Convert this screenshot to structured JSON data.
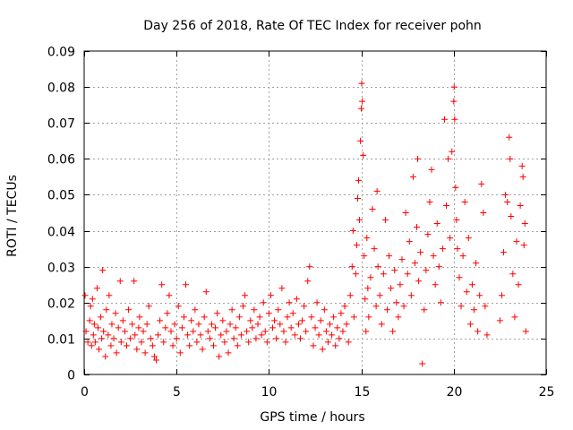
{
  "chart_data": {
    "type": "scatter",
    "title": "Day 256 of 2018, Rate Of TEC Index for receiver pohn",
    "xlabel": "GPS time / hours",
    "ylabel": "ROTI / TECUs",
    "xlim": [
      0,
      25
    ],
    "ylim": [
      0,
      0.09
    ],
    "x_ticks": [
      0,
      5,
      10,
      15,
      20,
      25
    ],
    "y_ticks": [
      0,
      0.01,
      0.02,
      0.03,
      0.04,
      0.05,
      0.06,
      0.07,
      0.08,
      0.09
    ],
    "x_tick_labels": [
      "0",
      "5",
      "10",
      "15",
      "20",
      "25"
    ],
    "y_tick_labels": [
      "0",
      "0.01",
      "0.02",
      "0.03",
      "0.04",
      "0.05",
      "0.06",
      "0.07",
      "0.08",
      "0.09"
    ],
    "grid": true,
    "marker": "+",
    "series_color": "#ff0000",
    "series": [
      {
        "name": "ROTI",
        "points": [
          [
            0.05,
            0.022
          ],
          [
            0.1,
            0.012
          ],
          [
            0.2,
            0.009
          ],
          [
            0.3,
            0.015
          ],
          [
            0.35,
            0.019
          ],
          [
            0.4,
            0.008
          ],
          [
            0.45,
            0.021
          ],
          [
            0.5,
            0.011
          ],
          [
            0.55,
            0.014
          ],
          [
            0.6,
            0.009
          ],
          [
            0.7,
            0.024
          ],
          [
            0.75,
            0.013
          ],
          [
            0.8,
            0.007
          ],
          [
            0.9,
            0.016
          ],
          [
            0.95,
            0.01
          ],
          [
            1.0,
            0.029
          ],
          [
            1.05,
            0.012
          ],
          [
            1.15,
            0.005
          ],
          [
            1.2,
            0.018
          ],
          [
            1.3,
            0.011
          ],
          [
            1.35,
            0.022
          ],
          [
            1.45,
            0.008
          ],
          [
            1.5,
            0.014
          ],
          [
            1.6,
            0.01
          ],
          [
            1.7,
            0.017
          ],
          [
            1.75,
            0.006
          ],
          [
            1.85,
            0.013
          ],
          [
            1.95,
            0.026
          ],
          [
            2.0,
            0.009
          ],
          [
            2.1,
            0.015
          ],
          [
            2.2,
            0.012
          ],
          [
            2.3,
            0.008
          ],
          [
            2.4,
            0.018
          ],
          [
            2.5,
            0.01
          ],
          [
            2.6,
            0.014
          ],
          [
            2.7,
            0.026
          ],
          [
            2.75,
            0.011
          ],
          [
            2.85,
            0.007
          ],
          [
            2.95,
            0.013
          ],
          [
            3.0,
            0.016
          ],
          [
            3.1,
            0.009
          ],
          [
            3.2,
            0.012
          ],
          [
            3.3,
            0.006
          ],
          [
            3.4,
            0.014
          ],
          [
            3.5,
            0.019
          ],
          [
            3.6,
            0.01
          ],
          [
            3.7,
            0.008
          ],
          [
            3.8,
            0.005
          ],
          [
            3.9,
            0.004
          ],
          [
            4.0,
            0.011
          ],
          [
            4.1,
            0.015
          ],
          [
            4.2,
            0.025
          ],
          [
            4.3,
            0.009
          ],
          [
            4.4,
            0.013
          ],
          [
            4.5,
            0.017
          ],
          [
            4.6,
            0.022
          ],
          [
            4.7,
            0.012
          ],
          [
            4.8,
            0.008
          ],
          [
            4.9,
            0.014
          ],
          [
            5.0,
            0.01
          ],
          [
            5.1,
            0.019
          ],
          [
            5.2,
            0.006
          ],
          [
            5.3,
            0.013
          ],
          [
            5.4,
            0.016
          ],
          [
            5.5,
            0.025
          ],
          [
            5.6,
            0.011
          ],
          [
            5.7,
            0.008
          ],
          [
            5.8,
            0.015
          ],
          [
            5.9,
            0.012
          ],
          [
            6.0,
            0.018
          ],
          [
            6.1,
            0.009
          ],
          [
            6.2,
            0.014
          ],
          [
            6.3,
            0.011
          ],
          [
            6.4,
            0.007
          ],
          [
            6.5,
            0.016
          ],
          [
            6.6,
            0.023
          ],
          [
            6.7,
            0.012
          ],
          [
            6.8,
            0.01
          ],
          [
            6.9,
            0.014
          ],
          [
            7.0,
            0.008
          ],
          [
            7.1,
            0.013
          ],
          [
            7.2,
            0.017
          ],
          [
            7.3,
            0.005
          ],
          [
            7.4,
            0.011
          ],
          [
            7.5,
            0.015
          ],
          [
            7.6,
            0.009
          ],
          [
            7.7,
            0.012
          ],
          [
            7.8,
            0.006
          ],
          [
            7.9,
            0.014
          ],
          [
            8.0,
            0.018
          ],
          [
            8.1,
            0.01
          ],
          [
            8.2,
            0.013
          ],
          [
            8.3,
            0.008
          ],
          [
            8.4,
            0.016
          ],
          [
            8.5,
            0.011
          ],
          [
            8.6,
            0.019
          ],
          [
            8.7,
            0.022
          ],
          [
            8.8,
            0.012
          ],
          [
            8.9,
            0.009
          ],
          [
            9.0,
            0.015
          ],
          [
            9.1,
            0.013
          ],
          [
            9.2,
            0.018
          ],
          [
            9.3,
            0.01
          ],
          [
            9.4,
            0.014
          ],
          [
            9.5,
            0.016
          ],
          [
            9.6,
            0.011
          ],
          [
            9.7,
            0.02
          ],
          [
            9.8,
            0.012
          ],
          [
            9.9,
            0.009
          ],
          [
            10.0,
            0.017
          ],
          [
            10.1,
            0.022
          ],
          [
            10.2,
            0.013
          ],
          [
            10.3,
            0.015
          ],
          [
            10.4,
            0.01
          ],
          [
            10.5,
            0.018
          ],
          [
            10.6,
            0.014
          ],
          [
            10.7,
            0.024
          ],
          [
            10.8,
            0.012
          ],
          [
            10.9,
            0.009
          ],
          [
            11.0,
            0.016
          ],
          [
            11.1,
            0.02
          ],
          [
            11.2,
            0.013
          ],
          [
            11.3,
            0.017
          ],
          [
            11.4,
            0.011
          ],
          [
            11.5,
            0.021
          ],
          [
            11.6,
            0.014
          ],
          [
            11.7,
            0.01
          ],
          [
            11.8,
            0.015
          ],
          [
            11.9,
            0.019
          ],
          [
            12.0,
            0.012
          ],
          [
            12.1,
            0.026
          ],
          [
            12.2,
            0.03
          ],
          [
            12.3,
            0.016
          ],
          [
            12.4,
            0.008
          ],
          [
            12.5,
            0.013
          ],
          [
            12.6,
            0.02
          ],
          [
            12.7,
            0.011
          ],
          [
            12.8,
            0.015
          ],
          [
            12.9,
            0.007
          ],
          [
            13.0,
            0.018
          ],
          [
            13.1,
            0.012
          ],
          [
            13.2,
            0.009
          ],
          [
            13.3,
            0.014
          ],
          [
            13.4,
            0.011
          ],
          [
            13.5,
            0.016
          ],
          [
            13.6,
            0.008
          ],
          [
            13.7,
            0.013
          ],
          [
            13.8,
            0.01
          ],
          [
            13.9,
            0.017
          ],
          [
            14.0,
            0.012
          ],
          [
            14.1,
            0.019
          ],
          [
            14.2,
            0.014
          ],
          [
            14.3,
            0.009
          ],
          [
            14.4,
            0.022
          ],
          [
            14.5,
            0.03
          ],
          [
            14.55,
            0.04
          ],
          [
            14.6,
            0.016
          ],
          [
            14.7,
            0.028
          ],
          [
            14.75,
            0.036
          ],
          [
            14.8,
            0.049
          ],
          [
            14.85,
            0.054
          ],
          [
            14.9,
            0.043
          ],
          [
            14.95,
            0.065
          ],
          [
            15.0,
            0.074
          ],
          [
            15.02,
            0.081
          ],
          [
            15.05,
            0.076
          ],
          [
            15.1,
            0.061
          ],
          [
            15.15,
            0.033
          ],
          [
            15.2,
            0.021
          ],
          [
            15.25,
            0.012
          ],
          [
            15.3,
            0.038
          ],
          [
            15.35,
            0.024
          ],
          [
            15.4,
            0.016
          ],
          [
            15.5,
            0.027
          ],
          [
            15.6,
            0.046
          ],
          [
            15.7,
            0.035
          ],
          [
            15.8,
            0.019
          ],
          [
            15.85,
            0.051
          ],
          [
            15.9,
            0.03
          ],
          [
            16.0,
            0.022
          ],
          [
            16.1,
            0.014
          ],
          [
            16.2,
            0.028
          ],
          [
            16.3,
            0.043
          ],
          [
            16.4,
            0.018
          ],
          [
            16.5,
            0.033
          ],
          [
            16.6,
            0.024
          ],
          [
            16.7,
            0.012
          ],
          [
            16.8,
            0.029
          ],
          [
            16.9,
            0.02
          ],
          [
            17.0,
            0.016
          ],
          [
            17.1,
            0.025
          ],
          [
            17.2,
            0.032
          ],
          [
            17.3,
            0.019
          ],
          [
            17.4,
            0.045
          ],
          [
            17.5,
            0.028
          ],
          [
            17.6,
            0.037
          ],
          [
            17.7,
            0.022
          ],
          [
            17.8,
            0.055
          ],
          [
            17.9,
            0.031
          ],
          [
            18.0,
            0.041
          ],
          [
            18.05,
            0.06
          ],
          [
            18.1,
            0.026
          ],
          [
            18.2,
            0.034
          ],
          [
            18.3,
            0.003
          ],
          [
            18.4,
            0.018
          ],
          [
            18.5,
            0.029
          ],
          [
            18.6,
            0.039
          ],
          [
            18.7,
            0.048
          ],
          [
            18.8,
            0.057
          ],
          [
            18.9,
            0.033
          ],
          [
            19.0,
            0.025
          ],
          [
            19.1,
            0.042
          ],
          [
            19.2,
            0.03
          ],
          [
            19.3,
            0.02
          ],
          [
            19.4,
            0.035
          ],
          [
            19.5,
            0.071
          ],
          [
            19.6,
            0.047
          ],
          [
            19.7,
            0.06
          ],
          [
            19.8,
            0.038
          ],
          [
            19.9,
            0.062
          ],
          [
            20.0,
            0.076
          ],
          [
            20.02,
            0.08
          ],
          [
            20.05,
            0.071
          ],
          [
            20.1,
            0.052
          ],
          [
            20.15,
            0.043
          ],
          [
            20.2,
            0.035
          ],
          [
            20.3,
            0.027
          ],
          [
            20.4,
            0.019
          ],
          [
            20.5,
            0.033
          ],
          [
            20.6,
            0.048
          ],
          [
            20.7,
            0.023
          ],
          [
            20.8,
            0.038
          ],
          [
            20.9,
            0.014
          ],
          [
            21.0,
            0.025
          ],
          [
            21.1,
            0.018
          ],
          [
            21.2,
            0.031
          ],
          [
            21.3,
            0.012
          ],
          [
            21.4,
            0.022
          ],
          [
            21.5,
            0.053
          ],
          [
            21.6,
            0.045
          ],
          [
            21.7,
            0.019
          ],
          [
            21.8,
            0.011
          ],
          [
            22.5,
            0.015
          ],
          [
            22.6,
            0.022
          ],
          [
            22.7,
            0.034
          ],
          [
            22.8,
            0.05
          ],
          [
            22.9,
            0.048
          ],
          [
            23.0,
            0.066
          ],
          [
            23.05,
            0.06
          ],
          [
            23.1,
            0.044
          ],
          [
            23.2,
            0.028
          ],
          [
            23.3,
            0.016
          ],
          [
            23.4,
            0.037
          ],
          [
            23.5,
            0.025
          ],
          [
            23.6,
            0.047
          ],
          [
            23.7,
            0.058
          ],
          [
            23.75,
            0.055
          ],
          [
            23.8,
            0.036
          ],
          [
            23.85,
            0.042
          ],
          [
            23.9,
            0.012
          ]
        ]
      }
    ]
  }
}
